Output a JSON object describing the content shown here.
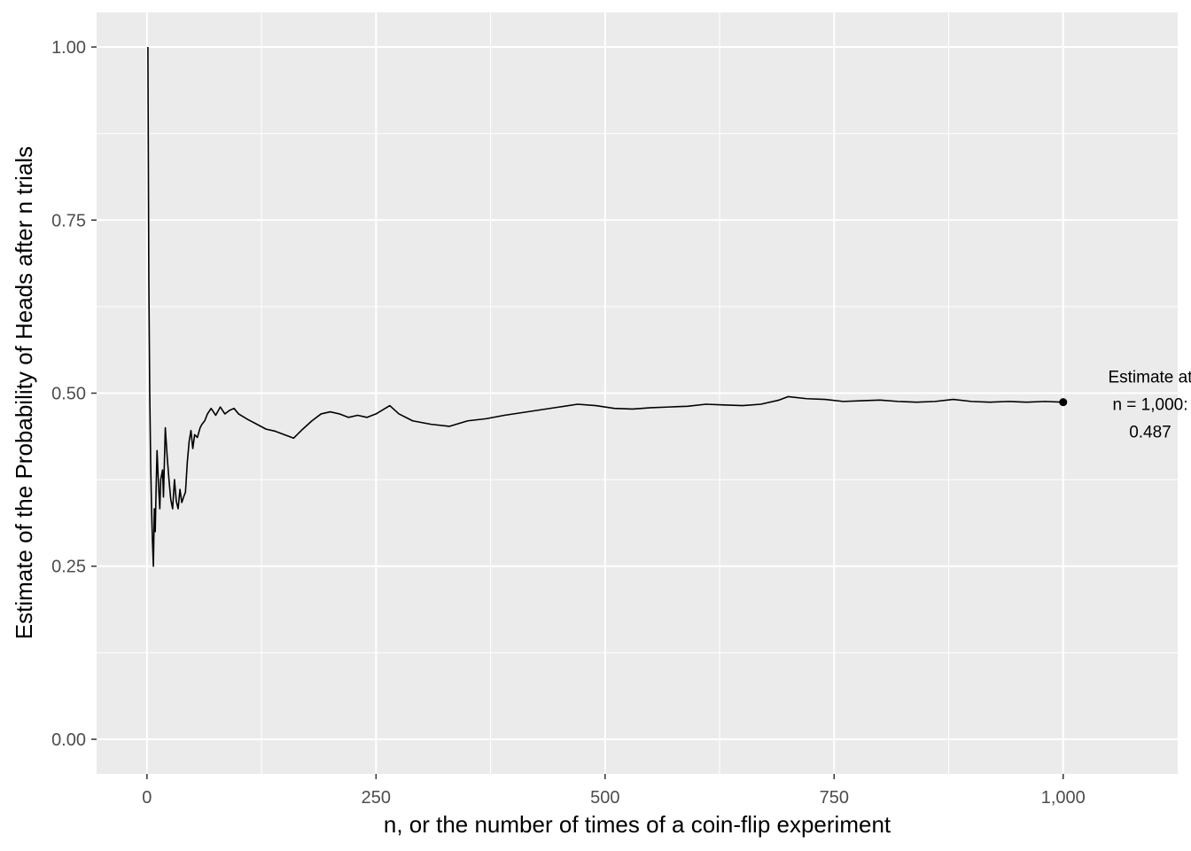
{
  "chart_data": {
    "type": "line",
    "title": "",
    "xlabel": "n, or the number of times of a coin-flip experiment",
    "ylabel": "Estimate of the Probability of Heads after n trials",
    "xlim": [
      -55,
      1125
    ],
    "ylim": [
      -0.05,
      1.05
    ],
    "x_ticks": [
      0,
      250,
      500,
      750,
      1000
    ],
    "x_tick_labels": [
      "0",
      "250",
      "500",
      "750",
      "1,000"
    ],
    "y_ticks": [
      0.0,
      0.25,
      0.5,
      0.75,
      1.0
    ],
    "y_tick_labels": [
      "0.00",
      "0.25",
      "0.50",
      "0.75",
      "1.00"
    ],
    "grid": true,
    "series": [
      {
        "x": [
          1,
          2,
          3,
          4,
          5,
          6,
          7,
          8,
          9,
          10,
          11,
          12,
          13,
          14,
          15,
          17,
          18,
          20,
          22,
          24,
          26,
          28,
          30,
          32,
          34,
          36,
          38,
          40,
          42,
          44,
          46,
          48,
          50,
          52,
          55,
          58,
          60,
          63,
          66,
          70,
          75,
          80,
          85,
          90,
          95,
          100,
          110,
          120,
          130,
          140,
          150,
          160,
          170,
          180,
          190,
          200,
          210,
          220,
          230,
          240,
          250,
          265,
          275,
          290,
          310,
          330,
          350,
          370,
          390,
          410,
          430,
          450,
          470,
          490,
          510,
          530,
          550,
          570,
          590,
          610,
          630,
          650,
          670,
          690,
          700,
          720,
          740,
          760,
          780,
          800,
          820,
          840,
          860,
          880,
          900,
          920,
          940,
          960,
          980,
          1000
        ],
        "y": [
          1.0,
          0.667,
          0.5,
          0.4,
          0.333,
          0.286,
          0.25,
          0.333,
          0.3,
          0.364,
          0.417,
          0.385,
          0.357,
          0.333,
          0.375,
          0.389,
          0.35,
          0.45,
          0.409,
          0.375,
          0.346,
          0.333,
          0.375,
          0.344,
          0.333,
          0.361,
          0.342,
          0.35,
          0.357,
          0.4,
          0.43,
          0.446,
          0.42,
          0.44,
          0.436,
          0.45,
          0.455,
          0.46,
          0.47,
          0.478,
          0.468,
          0.48,
          0.47,
          0.475,
          0.478,
          0.47,
          0.462,
          0.455,
          0.448,
          0.445,
          0.44,
          0.435,
          0.448,
          0.46,
          0.47,
          0.473,
          0.47,
          0.465,
          0.468,
          0.465,
          0.47,
          0.482,
          0.47,
          0.46,
          0.455,
          0.452,
          0.46,
          0.463,
          0.468,
          0.472,
          0.476,
          0.48,
          0.484,
          0.482,
          0.478,
          0.477,
          0.479,
          0.48,
          0.481,
          0.484,
          0.483,
          0.482,
          0.484,
          0.49,
          0.495,
          0.492,
          0.491,
          0.488,
          0.489,
          0.49,
          0.488,
          0.487,
          0.488,
          0.491,
          0.488,
          0.487,
          0.488,
          0.487,
          0.488,
          0.487
        ]
      }
    ],
    "endpoint": {
      "x": 1000,
      "y": 0.487
    },
    "annotation": [
      "Estimate at",
      "n = 1,000:",
      "0.487"
    ],
    "colors": {
      "panel": "#ebebeb",
      "grid": "#ffffff",
      "line": "#000000"
    }
  }
}
